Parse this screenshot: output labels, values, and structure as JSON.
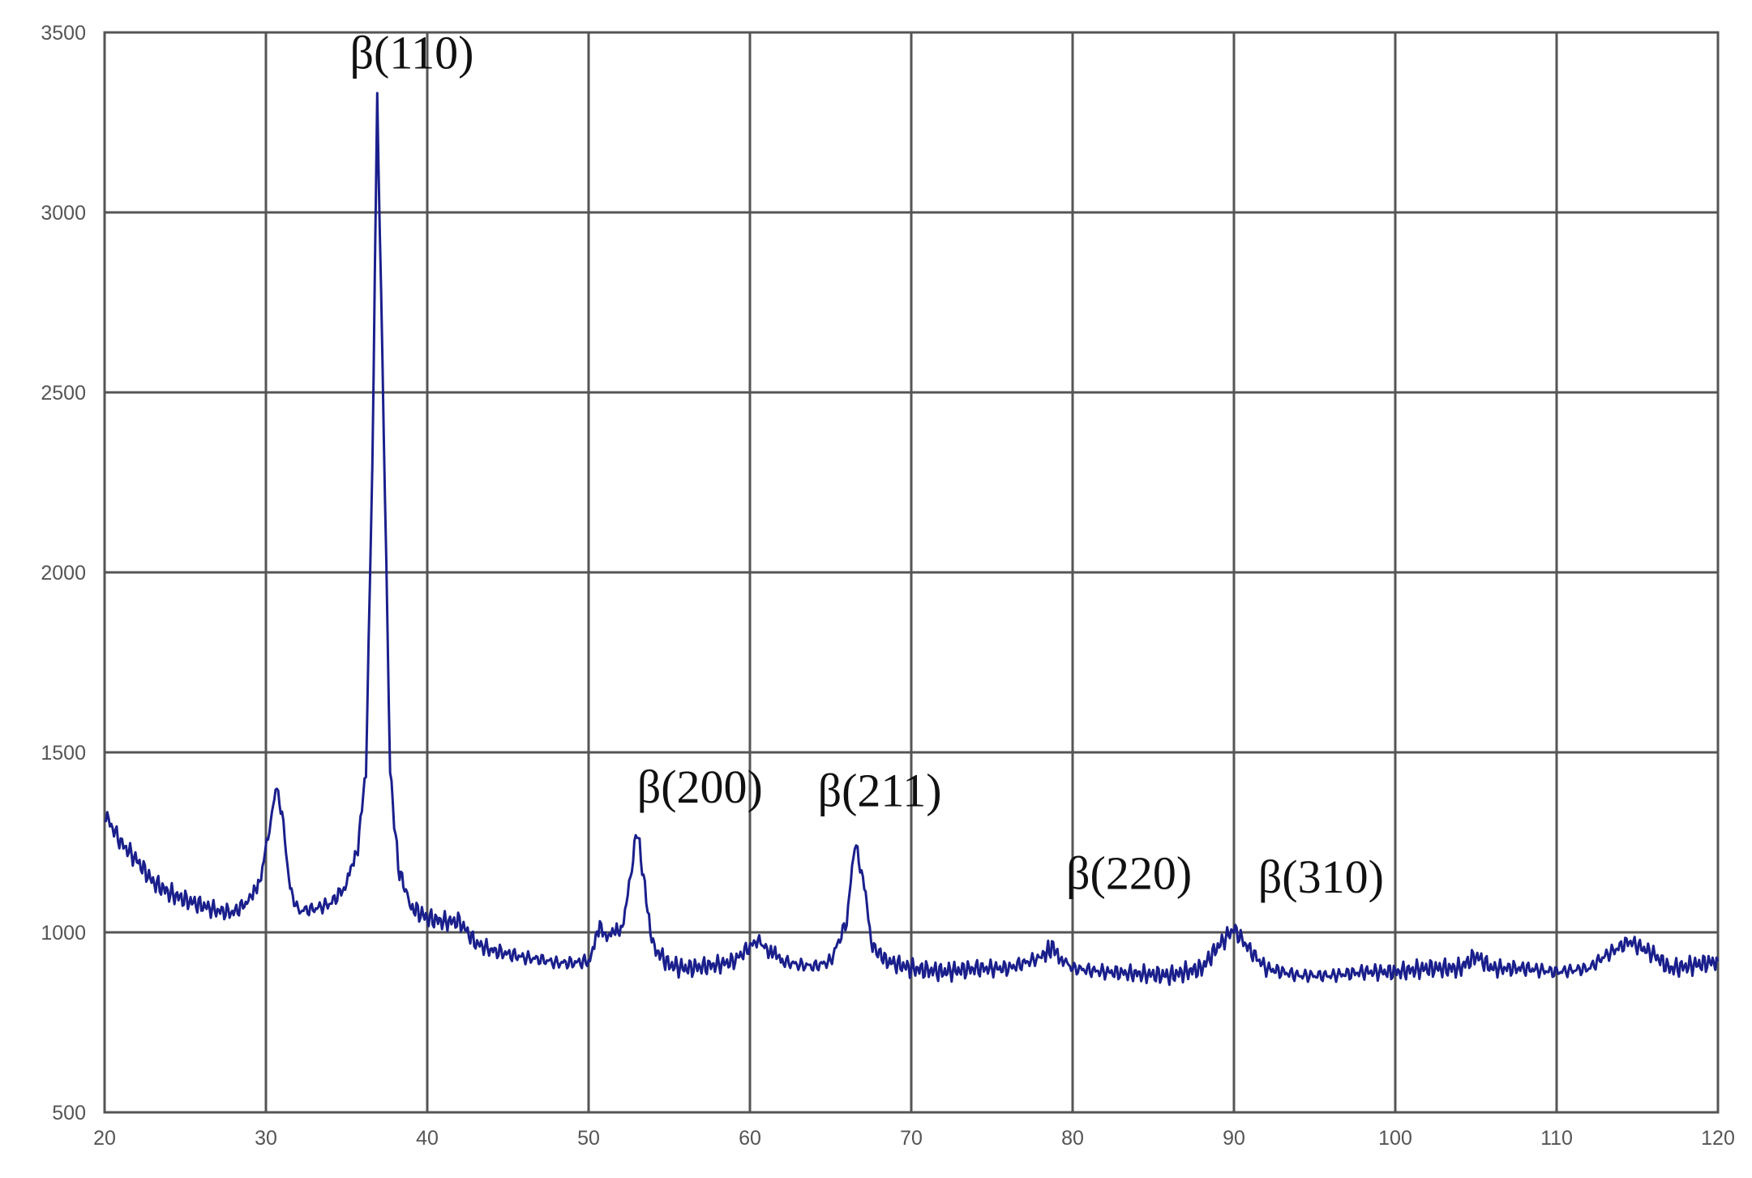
{
  "chart_data": {
    "type": "line",
    "title": "",
    "xlabel": "",
    "ylabel": "",
    "xlim": [
      20,
      120
    ],
    "ylim": [
      500,
      3500
    ],
    "x_ticks": [
      "20",
      "30",
      "40",
      "50",
      "60",
      "70",
      "80",
      "90",
      "100",
      "110",
      "120"
    ],
    "y_ticks": [
      "500",
      "1000",
      "1500",
      "2000",
      "2500",
      "3000",
      "3500"
    ],
    "grid": true,
    "legend": "none",
    "series_color": "#1a1f8c",
    "series": [
      {
        "points": [
          [
            20,
            1330
          ],
          [
            21,
            1250
          ],
          [
            22,
            1200
          ],
          [
            23,
            1140
          ],
          [
            24,
            1110
          ],
          [
            25,
            1090
          ],
          [
            26,
            1075
          ],
          [
            27,
            1060
          ],
          [
            28,
            1055
          ],
          [
            29,
            1090
          ],
          [
            29.7,
            1160
          ],
          [
            30.3,
            1300
          ],
          [
            30.6,
            1410
          ],
          [
            31.0,
            1330
          ],
          [
            31.5,
            1120
          ],
          [
            32,
            1060
          ],
          [
            33,
            1065
          ],
          [
            34,
            1080
          ],
          [
            35,
            1130
          ],
          [
            35.7,
            1240
          ],
          [
            36.2,
            1450
          ],
          [
            36.6,
            2300
          ],
          [
            36.9,
            3320
          ],
          [
            37.3,
            2400
          ],
          [
            37.7,
            1450
          ],
          [
            38.2,
            1180
          ],
          [
            39,
            1070
          ],
          [
            40,
            1040
          ],
          [
            41,
            1030
          ],
          [
            42,
            1030
          ],
          [
            43,
            970
          ],
          [
            44,
            950
          ],
          [
            45,
            940
          ],
          [
            46,
            930
          ],
          [
            47,
            925
          ],
          [
            48,
            915
          ],
          [
            49,
            915
          ],
          [
            50,
            920
          ],
          [
            50.7,
            1010
          ],
          [
            51.3,
            990
          ],
          [
            52,
            1000
          ],
          [
            52.6,
            1150
          ],
          [
            53.0,
            1290
          ],
          [
            53.4,
            1150
          ],
          [
            54,
            960
          ],
          [
            55,
            910
          ],
          [
            56,
            900
          ],
          [
            57,
            905
          ],
          [
            58,
            910
          ],
          [
            59,
            920
          ],
          [
            60,
            960
          ],
          [
            60.5,
            980
          ],
          [
            61.3,
            940
          ],
          [
            62,
            920
          ],
          [
            63,
            910
          ],
          [
            64,
            905
          ],
          [
            65,
            920
          ],
          [
            66,
            1030
          ],
          [
            66.5,
            1250
          ],
          [
            67.0,
            1150
          ],
          [
            67.6,
            960
          ],
          [
            68.5,
            920
          ],
          [
            70,
            900
          ],
          [
            72,
            890
          ],
          [
            74,
            900
          ],
          [
            76,
            900
          ],
          [
            78,
            930
          ],
          [
            78.8,
            960
          ],
          [
            79.5,
            920
          ],
          [
            80,
            900
          ],
          [
            82,
            890
          ],
          [
            84,
            885
          ],
          [
            86,
            880
          ],
          [
            88,
            900
          ],
          [
            89,
            960
          ],
          [
            90,
            1010
          ],
          [
            91,
            950
          ],
          [
            92,
            900
          ],
          [
            94,
            880
          ],
          [
            96,
            880
          ],
          [
            98,
            890
          ],
          [
            100,
            890
          ],
          [
            102,
            900
          ],
          [
            104,
            900
          ],
          [
            105,
            935
          ],
          [
            106,
            900
          ],
          [
            108,
            900
          ],
          [
            110,
            890
          ],
          [
            112,
            900
          ],
          [
            113,
            935
          ],
          [
            114.5,
            975
          ],
          [
            116,
            940
          ],
          [
            117,
            900
          ],
          [
            118,
            905
          ],
          [
            120,
            920
          ]
        ]
      }
    ],
    "annotations": [
      {
        "text": "β(110)",
        "x": 35.2,
        "y": 3400
      },
      {
        "text": "β(200)",
        "x": 53.0,
        "y": 1360
      },
      {
        "text": "β(211)",
        "x": 64.2,
        "y": 1350
      },
      {
        "text": "β(220)",
        "x": 79.6,
        "y": 1120
      },
      {
        "text": "β(310)",
        "x": 91.5,
        "y": 1110
      }
    ]
  }
}
